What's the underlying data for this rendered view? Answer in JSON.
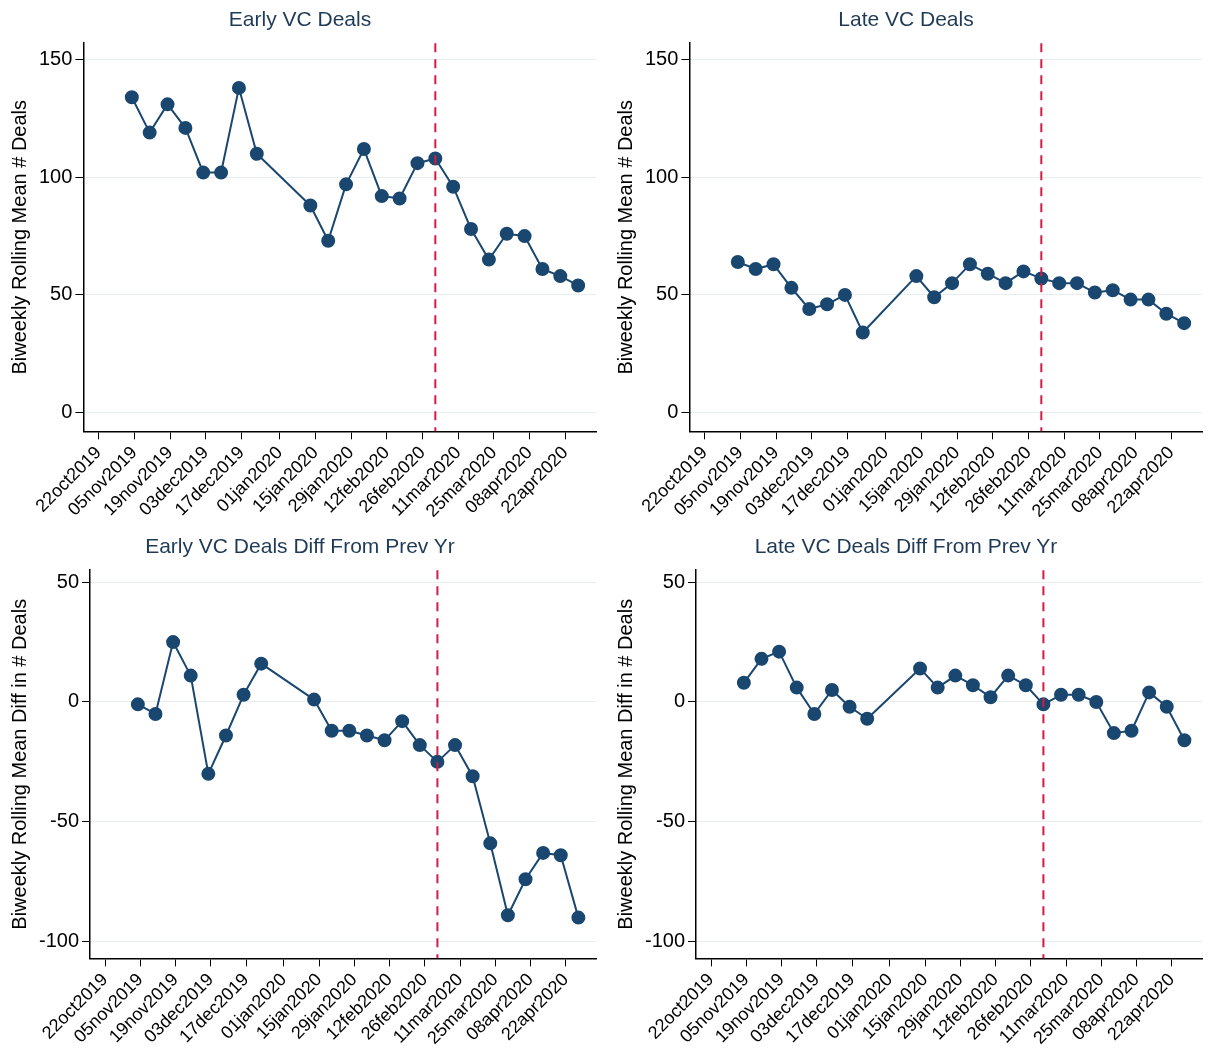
{
  "chart_data": [
    {
      "type": "line",
      "title": "Early VC Deals",
      "ylabel": "Biweekly Rolling Mean # Deals",
      "x": [
        "2019-11-04",
        "2019-11-11",
        "2019-11-18",
        "2019-11-25",
        "2019-12-02",
        "2019-12-09",
        "2019-12-16",
        "2019-12-23",
        "2020-01-13",
        "2020-01-20",
        "2020-01-27",
        "2020-02-03",
        "2020-02-10",
        "2020-02-17",
        "2020-02-24",
        "2020-03-02",
        "2020-03-09",
        "2020-03-16",
        "2020-03-23",
        "2020-03-30",
        "2020-04-06",
        "2020-04-13",
        "2020-04-20",
        "2020-04-27"
      ],
      "series": [
        {
          "color": "#1a476f",
          "values": [
            134,
            119,
            131,
            121,
            102,
            102,
            138,
            110,
            88,
            73,
            97,
            112,
            92,
            91,
            106,
            108,
            96,
            78,
            65,
            76,
            75,
            61,
            58,
            54
          ]
        }
      ],
      "xlim": [
        "2019-10-16",
        "2020-05-04"
      ],
      "ylim": [
        -8,
        157
      ],
      "yticks": [
        0,
        50,
        100,
        150
      ],
      "xticks": [
        {
          "value": "2019-10-22",
          "label": "22oct2019"
        },
        {
          "value": "2019-11-05",
          "label": "05nov2019"
        },
        {
          "value": "2019-11-19",
          "label": "19nov2019"
        },
        {
          "value": "2019-12-03",
          "label": "03dec2019"
        },
        {
          "value": "2019-12-17",
          "label": "17dec2019"
        },
        {
          "value": "2020-01-01",
          "label": "01jan2020"
        },
        {
          "value": "2020-01-15",
          "label": "15jan2020"
        },
        {
          "value": "2020-01-29",
          "label": "29jan2020"
        },
        {
          "value": "2020-02-12",
          "label": "12feb2020"
        },
        {
          "value": "2020-02-26",
          "label": "26feb2020"
        },
        {
          "value": "2020-03-11",
          "label": "11mar2020"
        },
        {
          "value": "2020-03-25",
          "label": "25mar2020"
        },
        {
          "value": "2020-04-08",
          "label": "08apr2020"
        },
        {
          "value": "2020-04-22",
          "label": "22apr2020"
        }
      ],
      "grid": "y",
      "marker": "circle",
      "ref_lines": [
        {
          "axis": "x",
          "value": "2020-03-02",
          "color": "#d01c44",
          "line_style": "dashed"
        }
      ]
    },
    {
      "type": "line",
      "title": "Late VC Deals",
      "ylabel": "Biweekly Rolling Mean # Deals",
      "x": [
        "2019-11-04",
        "2019-11-11",
        "2019-11-18",
        "2019-11-25",
        "2019-12-02",
        "2019-12-09",
        "2019-12-16",
        "2019-12-23",
        "2020-01-13",
        "2020-01-20",
        "2020-01-27",
        "2020-02-03",
        "2020-02-10",
        "2020-02-17",
        "2020-02-24",
        "2020-03-02",
        "2020-03-09",
        "2020-03-16",
        "2020-03-23",
        "2020-03-30",
        "2020-04-06",
        "2020-04-13",
        "2020-04-20",
        "2020-04-27"
      ],
      "series": [
        {
          "color": "#1a476f",
          "values": [
            64,
            61,
            63,
            53,
            44,
            46,
            50,
            34,
            58,
            49,
            55,
            63,
            59,
            55,
            60,
            57,
            55,
            55,
            51,
            52,
            48,
            48,
            42,
            38
          ]
        }
      ],
      "xlim": [
        "2019-10-16",
        "2020-05-04"
      ],
      "ylim": [
        -8,
        157
      ],
      "yticks": [
        0,
        50,
        100,
        150
      ],
      "xticks": [
        {
          "value": "2019-10-22",
          "label": "22oct2019"
        },
        {
          "value": "2019-11-05",
          "label": "05nov2019"
        },
        {
          "value": "2019-11-19",
          "label": "19nov2019"
        },
        {
          "value": "2019-12-03",
          "label": "03dec2019"
        },
        {
          "value": "2019-12-17",
          "label": "17dec2019"
        },
        {
          "value": "2020-01-01",
          "label": "01jan2020"
        },
        {
          "value": "2020-01-15",
          "label": "15jan2020"
        },
        {
          "value": "2020-01-29",
          "label": "29jan2020"
        },
        {
          "value": "2020-02-12",
          "label": "12feb2020"
        },
        {
          "value": "2020-02-26",
          "label": "26feb2020"
        },
        {
          "value": "2020-03-11",
          "label": "11mar2020"
        },
        {
          "value": "2020-03-25",
          "label": "25mar2020"
        },
        {
          "value": "2020-04-08",
          "label": "08apr2020"
        },
        {
          "value": "2020-04-22",
          "label": "22apr2020"
        }
      ],
      "grid": "y",
      "marker": "circle",
      "ref_lines": [
        {
          "axis": "x",
          "value": "2020-03-02",
          "color": "#d01c44",
          "line_style": "dashed"
        }
      ]
    },
    {
      "type": "line",
      "title": "Early VC Deals Diff From Prev Yr",
      "ylabel": "Biweekly Rolling Mean Diff in # Deals",
      "x": [
        "2019-11-04",
        "2019-11-11",
        "2019-11-18",
        "2019-11-25",
        "2019-12-02",
        "2019-12-09",
        "2019-12-16",
        "2019-12-23",
        "2020-01-13",
        "2020-01-20",
        "2020-01-27",
        "2020-02-03",
        "2020-02-10",
        "2020-02-17",
        "2020-02-24",
        "2020-03-02",
        "2020-03-09",
        "2020-03-16",
        "2020-03-23",
        "2020-03-30",
        "2020-04-06",
        "2020-04-13",
        "2020-04-20",
        "2020-04-27"
      ],
      "series": [
        {
          "color": "#1a476f",
          "values": [
            -1,
            -5,
            25,
            11,
            -30,
            -14,
            3,
            16,
            1,
            -12,
            -12,
            -14,
            -16,
            -8,
            -18,
            -25,
            -18,
            -31,
            -59,
            -89,
            -74,
            -63,
            -64,
            -90
          ]
        }
      ],
      "xlim": [
        "2019-10-16",
        "2020-05-04"
      ],
      "ylim": [
        -107,
        55
      ],
      "yticks": [
        -100,
        -50,
        0,
        50
      ],
      "xticks": [
        {
          "value": "2019-10-22",
          "label": "22oct2019"
        },
        {
          "value": "2019-11-05",
          "label": "05nov2019"
        },
        {
          "value": "2019-11-19",
          "label": "19nov2019"
        },
        {
          "value": "2019-12-03",
          "label": "03dec2019"
        },
        {
          "value": "2019-12-17",
          "label": "17dec2019"
        },
        {
          "value": "2020-01-01",
          "label": "01jan2020"
        },
        {
          "value": "2020-01-15",
          "label": "15jan2020"
        },
        {
          "value": "2020-01-29",
          "label": "29jan2020"
        },
        {
          "value": "2020-02-12",
          "label": "12feb2020"
        },
        {
          "value": "2020-02-26",
          "label": "26feb2020"
        },
        {
          "value": "2020-03-11",
          "label": "11mar2020"
        },
        {
          "value": "2020-03-25",
          "label": "25mar2020"
        },
        {
          "value": "2020-04-08",
          "label": "08apr2020"
        },
        {
          "value": "2020-04-22",
          "label": "22apr2020"
        }
      ],
      "grid": "y",
      "marker": "circle",
      "ref_lines": [
        {
          "axis": "x",
          "value": "2020-03-02",
          "color": "#d01c44",
          "line_style": "dashed"
        }
      ]
    },
    {
      "type": "line",
      "title": "Late VC Deals Diff From Prev Yr",
      "ylabel": "Biweekly Rolling Mean Diff in # Deals",
      "x": [
        "2019-11-04",
        "2019-11-11",
        "2019-11-18",
        "2019-11-25",
        "2019-12-02",
        "2019-12-09",
        "2019-12-16",
        "2019-12-23",
        "2020-01-13",
        "2020-01-20",
        "2020-01-27",
        "2020-02-03",
        "2020-02-10",
        "2020-02-17",
        "2020-02-24",
        "2020-03-02",
        "2020-03-09",
        "2020-03-16",
        "2020-03-23",
        "2020-03-30",
        "2020-04-06",
        "2020-04-13",
        "2020-04-20",
        "2020-04-27"
      ],
      "series": [
        {
          "color": "#1a476f",
          "values": [
            8,
            18,
            21,
            6,
            -5,
            5,
            -2,
            -7,
            14,
            6,
            11,
            7,
            2,
            11,
            7,
            -1,
            3,
            3,
            0,
            -13,
            -12,
            4,
            -2,
            -16
          ]
        }
      ],
      "xlim": [
        "2019-10-16",
        "2020-05-04"
      ],
      "ylim": [
        -107,
        55
      ],
      "yticks": [
        -100,
        -50,
        0,
        50
      ],
      "xticks": [
        {
          "value": "2019-10-22",
          "label": "22oct2019"
        },
        {
          "value": "2019-11-05",
          "label": "05nov2019"
        },
        {
          "value": "2019-11-19",
          "label": "19nov2019"
        },
        {
          "value": "2019-12-03",
          "label": "03dec2019"
        },
        {
          "value": "2019-12-17",
          "label": "17dec2019"
        },
        {
          "value": "2020-01-01",
          "label": "01jan2020"
        },
        {
          "value": "2020-01-15",
          "label": "15jan2020"
        },
        {
          "value": "2020-01-29",
          "label": "29jan2020"
        },
        {
          "value": "2020-02-12",
          "label": "12feb2020"
        },
        {
          "value": "2020-02-26",
          "label": "26feb2020"
        },
        {
          "value": "2020-03-11",
          "label": "11mar2020"
        },
        {
          "value": "2020-03-25",
          "label": "25mar2020"
        },
        {
          "value": "2020-04-08",
          "label": "08apr2020"
        },
        {
          "value": "2020-04-22",
          "label": "22apr2020"
        }
      ],
      "grid": "y",
      "marker": "circle",
      "ref_lines": [
        {
          "axis": "x",
          "value": "2020-03-02",
          "color": "#d01c44",
          "line_style": "dashed"
        }
      ]
    }
  ]
}
